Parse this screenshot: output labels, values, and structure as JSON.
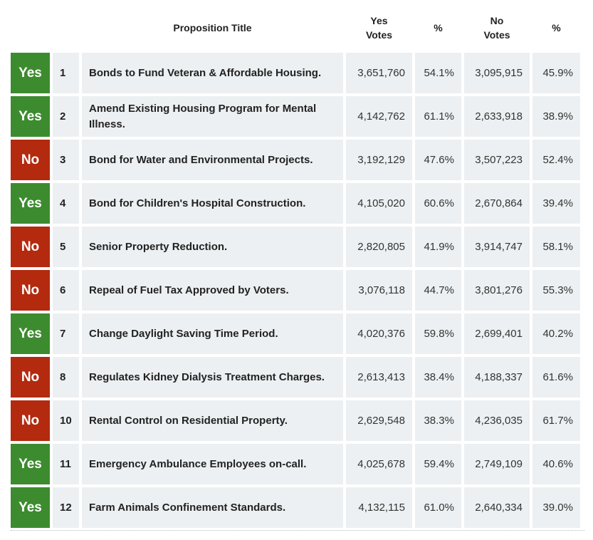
{
  "headers": {
    "title": "Proposition Title",
    "yes_votes_1": "Yes",
    "yes_votes_2": "Votes",
    "yes_pct": "%",
    "no_votes_1": "No",
    "no_votes_2": "Votes",
    "no_pct": "%"
  },
  "colors": {
    "yes": "#3d8b2f",
    "no": "#b32a0f",
    "cell": "#edf0f2"
  },
  "rows": [
    {
      "result": "Yes",
      "num": "1",
      "title": "Bonds to Fund Veteran & Affordable Housing.",
      "yes_votes": "3,651,760",
      "yes_pct": "54.1%",
      "no_votes": "3,095,915",
      "no_pct": "45.9%"
    },
    {
      "result": "Yes",
      "num": "2",
      "title": "Amend Existing Housing Program for Mental Illness.",
      "yes_votes": "4,142,762",
      "yes_pct": "61.1%",
      "no_votes": "2,633,918",
      "no_pct": "38.9%"
    },
    {
      "result": "No",
      "num": "3",
      "title": "Bond for Water and Environmental Projects.",
      "yes_votes": "3,192,129",
      "yes_pct": "47.6%",
      "no_votes": "3,507,223",
      "no_pct": "52.4%"
    },
    {
      "result": "Yes",
      "num": "4",
      "title": "Bond for Children's Hospital Construction.",
      "yes_votes": "4,105,020",
      "yes_pct": "60.6%",
      "no_votes": "2,670,864",
      "no_pct": "39.4%"
    },
    {
      "result": "No",
      "num": "5",
      "title": "Senior Property Reduction.",
      "yes_votes": "2,820,805",
      "yes_pct": "41.9%",
      "no_votes": "3,914,747",
      "no_pct": "58.1%"
    },
    {
      "result": "No",
      "num": "6",
      "title": "Repeal of Fuel Tax Approved by Voters.",
      "yes_votes": "3,076,118",
      "yes_pct": "44.7%",
      "no_votes": "3,801,276",
      "no_pct": "55.3%"
    },
    {
      "result": "Yes",
      "num": "7",
      "title": "Change Daylight Saving Time Period.",
      "yes_votes": "4,020,376",
      "yes_pct": "59.8%",
      "no_votes": "2,699,401",
      "no_pct": "40.2%"
    },
    {
      "result": "No",
      "num": "8",
      "title": "Regulates Kidney Dialysis Treatment Charges.",
      "yes_votes": "2,613,413",
      "yes_pct": "38.4%",
      "no_votes": "4,188,337",
      "no_pct": "61.6%"
    },
    {
      "result": "No",
      "num": "10",
      "title": "Rental Control on Residential Property.",
      "yes_votes": "2,629,548",
      "yes_pct": "38.3%",
      "no_votes": "4,236,035",
      "no_pct": "61.7%"
    },
    {
      "result": "Yes",
      "num": "11",
      "title": "Emergency Ambulance Employees on-call.",
      "yes_votes": "4,025,678",
      "yes_pct": "59.4%",
      "no_votes": "2,749,109",
      "no_pct": "40.6%"
    },
    {
      "result": "Yes",
      "num": "12",
      "title": "Farm Animals Confinement Standards.",
      "yes_votes": "4,132,115",
      "yes_pct": "61.0%",
      "no_votes": "2,640,334",
      "no_pct": "39.0%"
    }
  ]
}
